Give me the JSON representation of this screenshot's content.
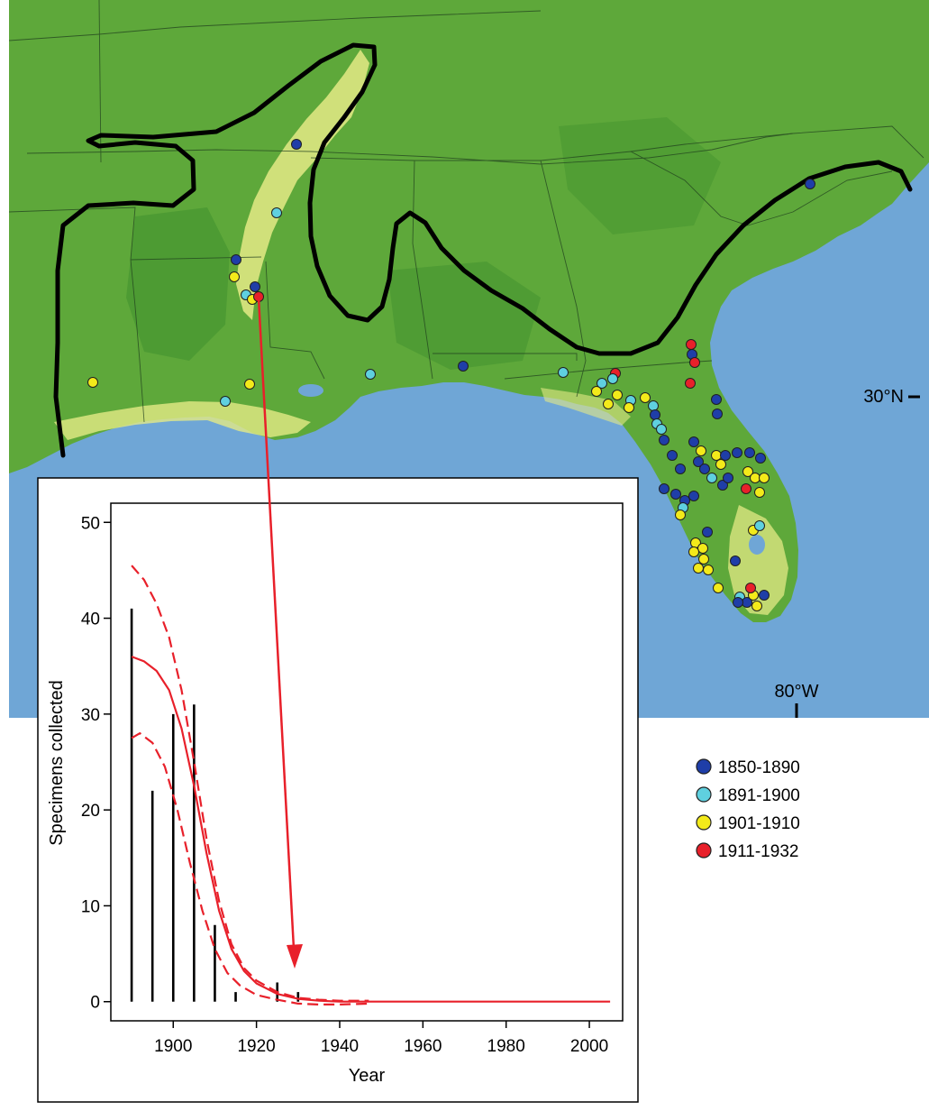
{
  "map": {
    "lat_label": "30°N",
    "lon_label": "80°W",
    "colors": {
      "ocean": "#6fa6d6",
      "land": "#5ea83a",
      "lowland": "#e4ea86",
      "range_line": "#000000"
    }
  },
  "legend": {
    "items": [
      {
        "label": "1850-1890",
        "color": "#1f3ea8"
      },
      {
        "label": "1891-1900",
        "color": "#5fd0df"
      },
      {
        "label": "1901-1910",
        "color": "#f3ea1a"
      },
      {
        "label": "1911-1932",
        "color": "#e8202a"
      }
    ]
  },
  "chart_data": {
    "type": "bar",
    "xlabel": "Year",
    "ylabel": "Specimens collected",
    "xlim": [
      1885,
      2008
    ],
    "ylim": [
      -2,
      52
    ],
    "xticks": [
      1900,
      1920,
      1940,
      1960,
      1980,
      2000
    ],
    "yticks": [
      0,
      10,
      20,
      30,
      40,
      50
    ],
    "grid": false,
    "bars": {
      "x": [
        1890,
        1895,
        1900,
        1905,
        1910,
        1915,
        1925,
        1930
      ],
      "values": [
        41,
        22,
        30,
        31,
        8,
        1,
        2,
        1
      ],
      "color": "#000000"
    },
    "curves": [
      {
        "style": "solid",
        "color": "#e8202a",
        "x": [
          1890,
          1893,
          1896,
          1899,
          1902,
          1905,
          1908,
          1911,
          1914,
          1917,
          1920,
          1925,
          1930,
          1935,
          1940,
          1950,
          1960,
          1980,
          2005
        ],
        "y": [
          36,
          35.5,
          34.5,
          32.5,
          28.5,
          22.5,
          15.5,
          9.5,
          5.5,
          3.2,
          1.9,
          0.8,
          0.3,
          0.1,
          0,
          0,
          0,
          0,
          0
        ]
      },
      {
        "style": "dashed",
        "color": "#e8202a",
        "x": [
          1890,
          1893,
          1896,
          1899,
          1902,
          1905,
          1908,
          1911,
          1914,
          1917,
          1920,
          1925,
          1930,
          1935,
          1940,
          1947
        ],
        "y": [
          45.5,
          44,
          41.5,
          38,
          32.5,
          25,
          17,
          10.5,
          6,
          3.5,
          2.2,
          1,
          0.4,
          0.2,
          0.1,
          0.1
        ]
      },
      {
        "style": "dashed",
        "color": "#e8202a",
        "x": [
          1890,
          1892,
          1895,
          1898,
          1901,
          1904,
          1907,
          1910,
          1913,
          1916,
          1920,
          1925,
          1930,
          1935,
          1940,
          1947
        ],
        "y": [
          27.5,
          28,
          27,
          24.5,
          20,
          14.5,
          9.5,
          5.5,
          3,
          1.7,
          0.7,
          0.2,
          -0.2,
          -0.3,
          -0.3,
          -0.2
        ]
      }
    ]
  }
}
